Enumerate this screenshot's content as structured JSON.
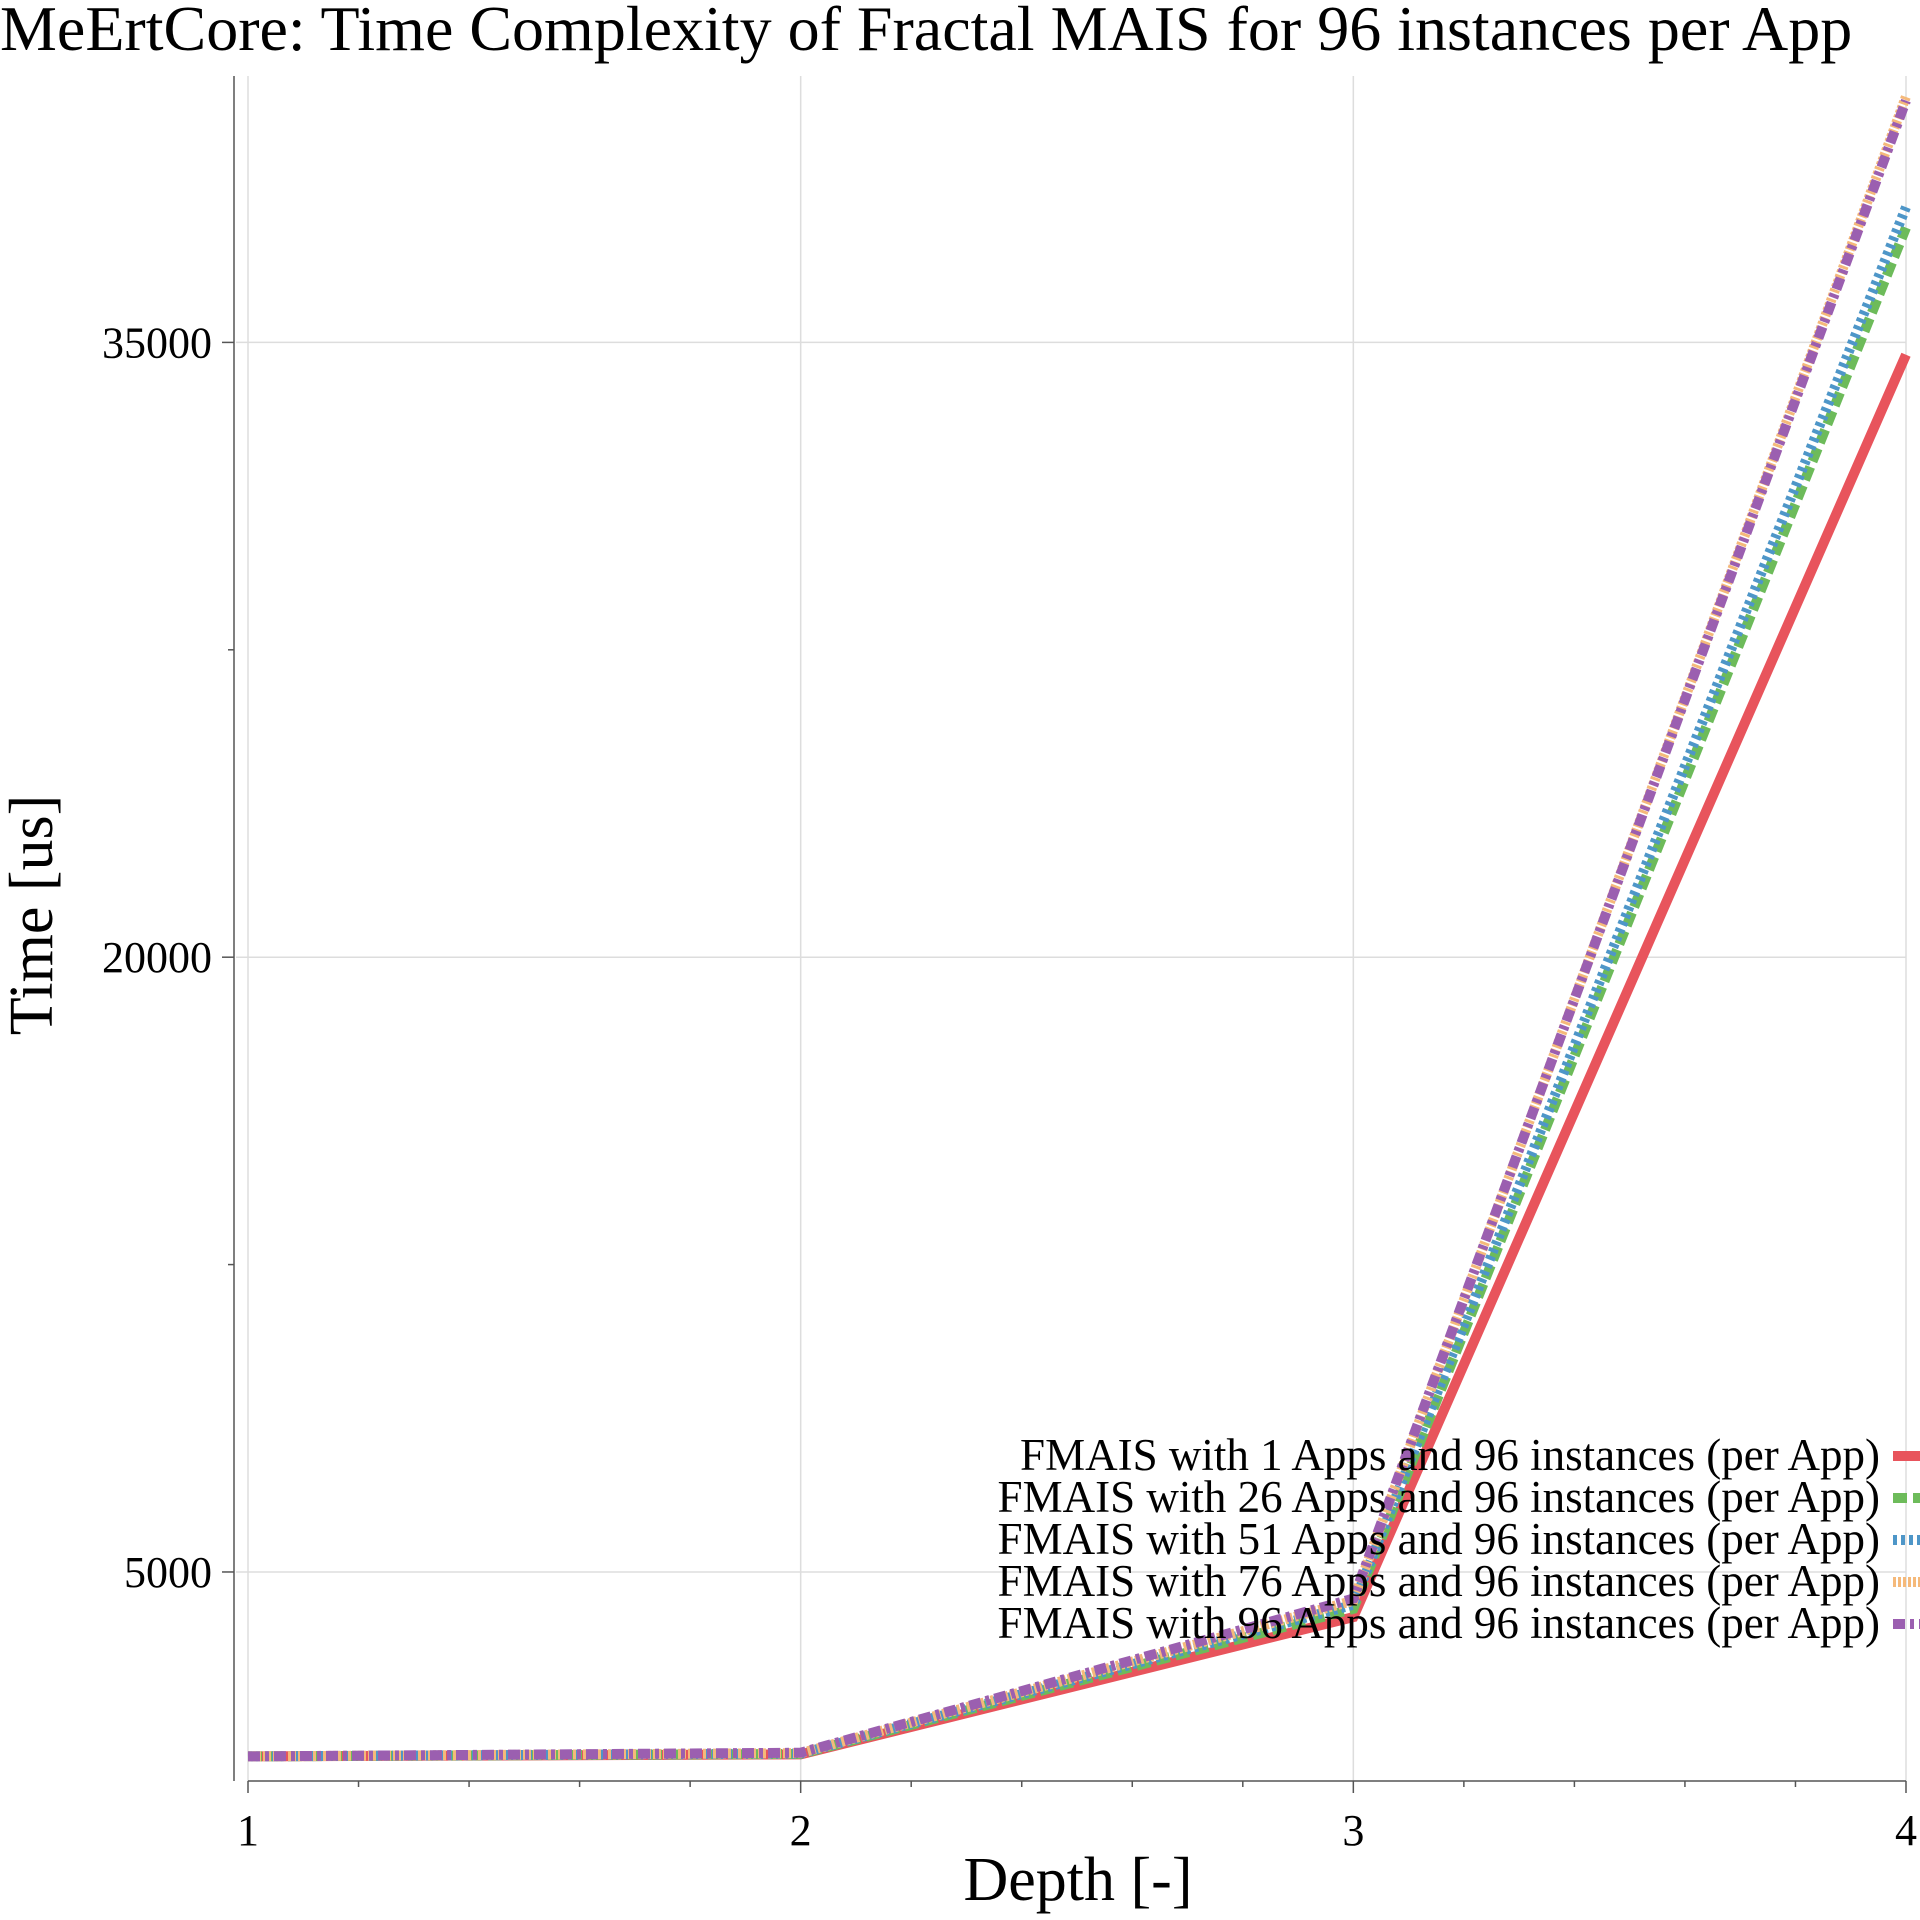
{
  "chart_data": {
    "type": "line",
    "title": "MeErtCore: Time Complexity of Fractal MAIS for 96 instances per App",
    "xlabel": "Depth [-]",
    "ylabel": "Time [us]",
    "x": [
      1,
      2,
      3,
      4
    ],
    "xlim": [
      1,
      4
    ],
    "ylim": [
      -100,
      41500
    ],
    "xticks": [
      "1",
      "2",
      "3",
      "4"
    ],
    "yticks": [
      5000,
      20000,
      35000
    ],
    "ytick_labels": [
      "5000",
      "20000",
      "35000"
    ],
    "grid": true,
    "legend_position": "bottom-right",
    "series": [
      {
        "name": "FMAIS with 1 Apps and 96 instances (per App)",
        "values": [
          500,
          550,
          3900,
          34700
        ],
        "color": "#e8545c",
        "dash": "solid"
      },
      {
        "name": "FMAIS with 26 Apps and 96 instances (per App)",
        "values": [
          500,
          560,
          4100,
          37800
        ],
        "color": "#6dbb5a",
        "dash": "dash"
      },
      {
        "name": "FMAIS with 51 Apps and 96 instances (per App)",
        "values": [
          500,
          570,
          4200,
          38300
        ],
        "color": "#4e96c8",
        "dash": "dot"
      },
      {
        "name": "FMAIS with 76 Apps and 96 instances (per App)",
        "values": [
          500,
          580,
          4300,
          41000
        ],
        "color": "#f5b97a",
        "dash": "dotdense"
      },
      {
        "name": "FMAIS with 96 Apps and 96 instances (per App)",
        "values": [
          500,
          590,
          4350,
          40900
        ],
        "color": "#9b5fb0",
        "dash": "dashdot"
      }
    ]
  }
}
